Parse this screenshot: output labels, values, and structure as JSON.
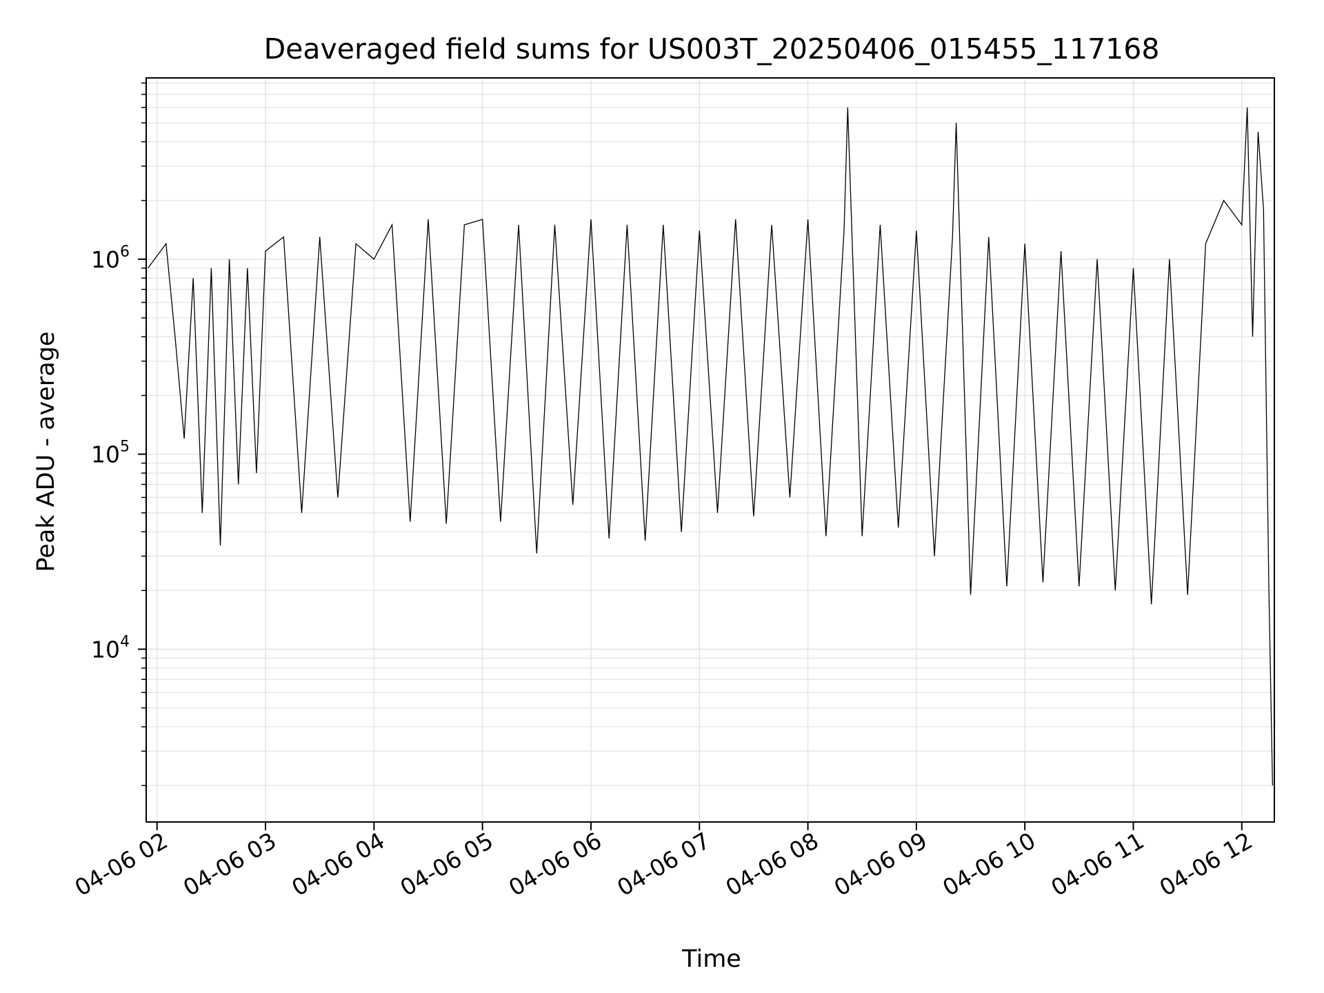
{
  "chart_data": {
    "type": "line",
    "title": "Deaveraged field sums for US003T_20250406_015455_117168",
    "xlabel": "Time",
    "ylabel": "Peak ADU - average",
    "yscale": "log",
    "ylim": [
      1300,
      8500000
    ],
    "xlim": [
      "04-06 01:54",
      "04-06 12:18"
    ],
    "grid": true,
    "line_color": "#000000",
    "grid_color": "#e6e6e6",
    "x_ticks": [
      "04-06 02",
      "04-06 03",
      "04-06 04",
      "04-06 05",
      "04-06 06",
      "04-06 07",
      "04-06 08",
      "04-06 09",
      "04-06 10",
      "04-06 11",
      "04-06 12"
    ],
    "y_ticks": [
      {
        "value": 10000,
        "base": "10",
        "exp": "4"
      },
      {
        "value": 100000,
        "base": "10",
        "exp": "5"
      },
      {
        "value": 1000000,
        "base": "10",
        "exp": "6"
      }
    ],
    "series": [
      {
        "x": [
          "04-06 01:55",
          "04-06 02:05",
          "04-06 02:10",
          "04-06 02:15",
          "04-06 02:20",
          "04-06 02:25",
          "04-06 02:30",
          "04-06 02:35",
          "04-06 02:40",
          "04-06 02:45",
          "04-06 02:50",
          "04-06 02:55",
          "04-06 03:00",
          "04-06 03:10",
          "04-06 03:20",
          "04-06 03:30",
          "04-06 03:40",
          "04-06 03:50",
          "04-06 04:00",
          "04-06 04:10",
          "04-06 04:20",
          "04-06 04:30",
          "04-06 04:40",
          "04-06 04:50",
          "04-06 05:00",
          "04-06 05:10",
          "04-06 05:20",
          "04-06 05:30",
          "04-06 05:40",
          "04-06 05:50",
          "04-06 06:00",
          "04-06 06:10",
          "04-06 06:20",
          "04-06 06:30",
          "04-06 06:40",
          "04-06 06:50",
          "04-06 07:00",
          "04-06 07:10",
          "04-06 07:20",
          "04-06 07:30",
          "04-06 07:40",
          "04-06 07:50",
          "04-06 08:00",
          "04-06 08:10",
          "04-06 08:20",
          "04-06 08:22",
          "04-06 08:30",
          "04-06 08:40",
          "04-06 08:50",
          "04-06 09:00",
          "04-06 09:10",
          "04-06 09:20",
          "04-06 09:22",
          "04-06 09:30",
          "04-06 09:40",
          "04-06 09:50",
          "04-06 10:00",
          "04-06 10:10",
          "04-06 10:20",
          "04-06 10:30",
          "04-06 10:40",
          "04-06 10:50",
          "04-06 11:00",
          "04-06 11:10",
          "04-06 11:20",
          "04-06 11:30",
          "04-06 11:40",
          "04-06 11:50",
          "04-06 12:00",
          "04-06 12:03",
          "04-06 12:06",
          "04-06 12:09",
          "04-06 12:12",
          "04-06 12:15",
          "04-06 12:17"
        ],
        "y": [
          900000,
          1200000,
          400000,
          120000,
          800000,
          50000,
          900000,
          34000,
          1000000,
          70000,
          900000,
          80000,
          1100000,
          1300000,
          50000,
          1300000,
          60000,
          1200000,
          1000000,
          1500000,
          45000,
          1600000,
          44000,
          1500000,
          1600000,
          45000,
          1500000,
          31000,
          1500000,
          55000,
          1600000,
          37000,
          1500000,
          36000,
          1500000,
          40000,
          1400000,
          50000,
          1600000,
          48000,
          1500000,
          60000,
          1600000,
          38000,
          1400000,
          6000000,
          38000,
          1500000,
          42000,
          1400000,
          30000,
          1300000,
          5000000,
          19000,
          1300000,
          21000,
          1200000,
          22000,
          1100000,
          21000,
          1000000,
          20000,
          900000,
          17000,
          1000000,
          19000,
          1200000,
          2000000,
          1500000,
          6000000,
          400000,
          4500000,
          1800000,
          20000,
          2000
        ]
      }
    ]
  }
}
